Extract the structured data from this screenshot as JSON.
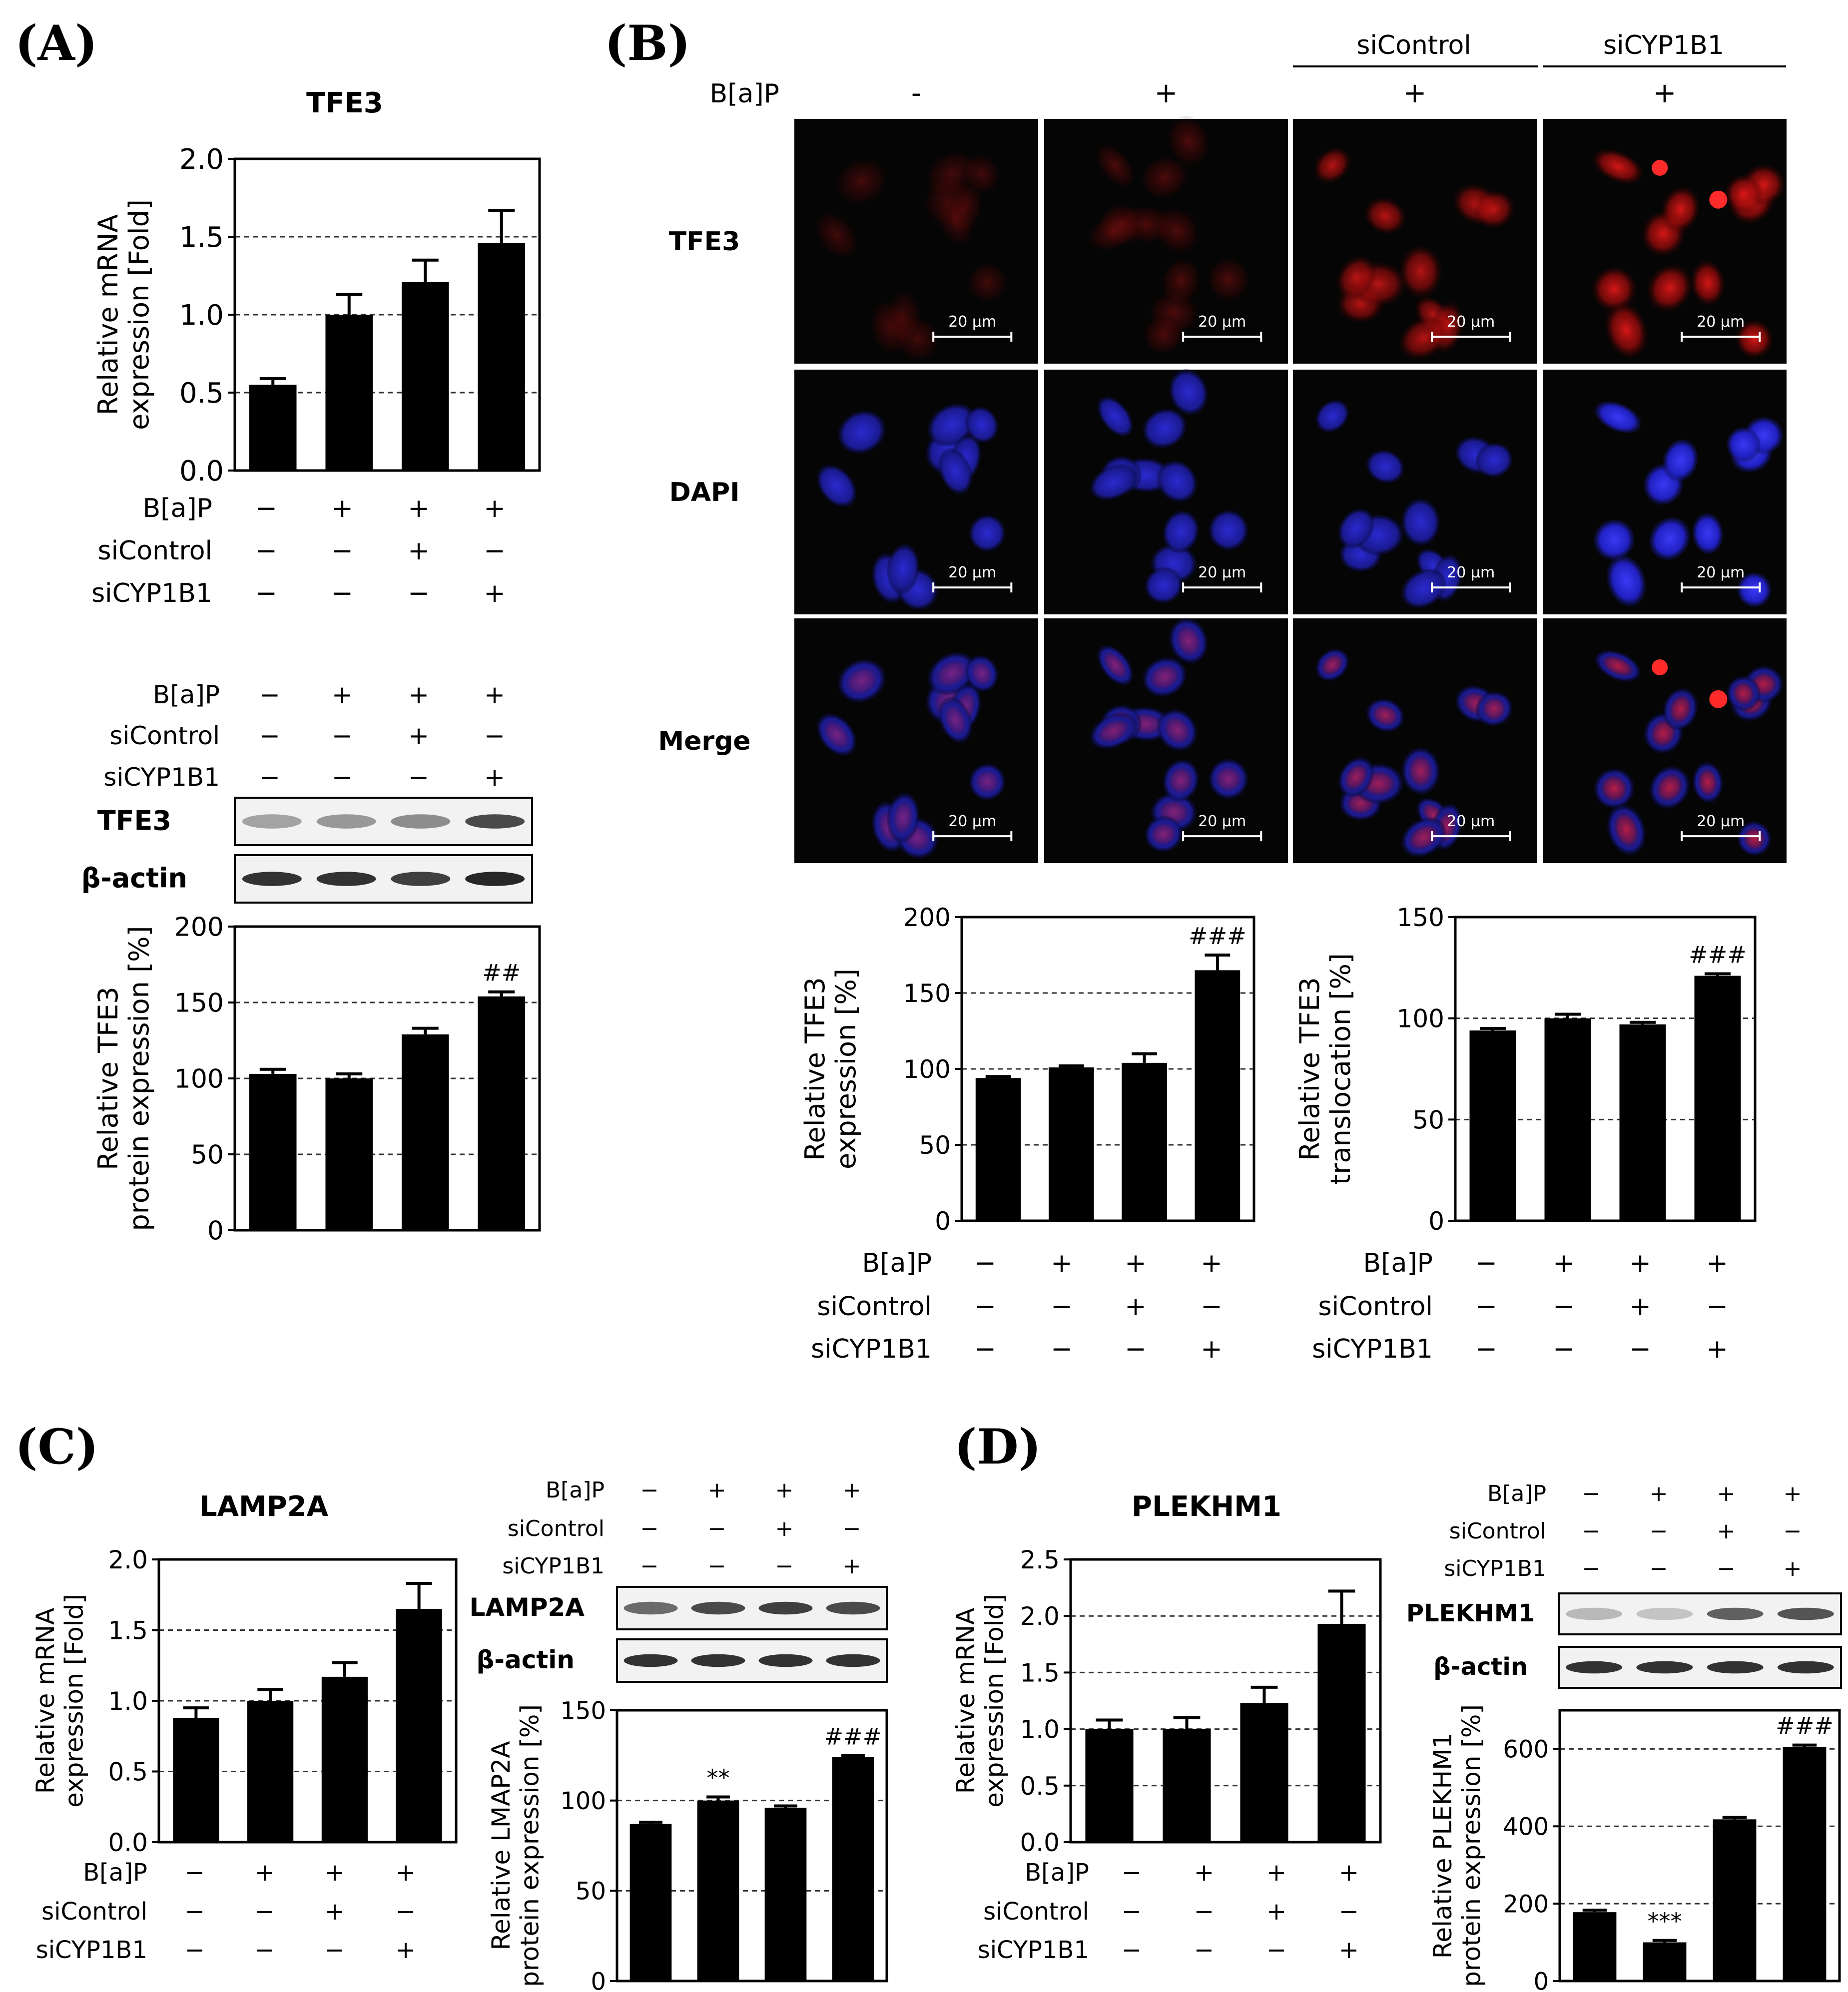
{
  "panels": {
    "A": {
      "label": "(A)"
    },
    "B": {
      "label": "(B)"
    },
    "C": {
      "label": "(C)"
    },
    "D": {
      "label": "(D)"
    }
  },
  "treatment_labels": {
    "bap": "B[a]P",
    "sicontrol": "siControl",
    "sicyp": "siCYP1B1"
  },
  "conditions": {
    "bap": [
      "−",
      "+",
      "+",
      "+"
    ],
    "sicontrol": [
      "−",
      "−",
      "+",
      "−"
    ],
    "sicyp": [
      "−",
      "−",
      "−",
      "+"
    ]
  },
  "blot_labels": {
    "A_target": "TFE3",
    "A_loading": "β-actin",
    "C_target": "LAMP2A",
    "C_loading": "β-actin",
    "D_target": "PLEKHM1",
    "D_loading": "β-actin"
  },
  "microscopy": {
    "header_bap": "B[a]P",
    "column_signs": [
      "-",
      "+",
      "+",
      "+"
    ],
    "group_sicontrol": "siControl",
    "group_sicyp": "siCYP1B1",
    "rows": [
      "TFE3",
      "DAPI",
      "Merge"
    ],
    "scale_bar": "20 μm",
    "colors": {
      "tfe3": "#d81414",
      "dapi": "#2a2ae0",
      "background": "#050505"
    }
  },
  "chart_data": [
    {
      "id": "A_mrna",
      "type": "bar",
      "title": "TFE3",
      "ylabel": "Relative mRNA\nexpression [Fold]",
      "categories": [
        "1",
        "2",
        "3",
        "4"
      ],
      "values": [
        0.55,
        1.0,
        1.21,
        1.46
      ],
      "errors": [
        0.04,
        0.13,
        0.14,
        0.21
      ],
      "ylim": [
        0,
        2.0
      ],
      "yticks": [
        "0.0",
        "0.5",
        "1.0",
        "1.5",
        "2.0"
      ],
      "ytick_values": [
        0,
        0.5,
        1.0,
        1.5,
        2.0
      ],
      "grid": [
        0.5,
        1.0,
        1.5
      ],
      "annotations": [
        "",
        "",
        "",
        ""
      ]
    },
    {
      "id": "A_protein",
      "type": "bar",
      "title": "",
      "ylabel": "Relative TFE3\nprotein expression [%]",
      "categories": [
        "1",
        "2",
        "3",
        "4"
      ],
      "values": [
        103,
        100,
        129,
        154
      ],
      "errors": [
        3,
        3,
        4,
        3
      ],
      "ylim": [
        0,
        200
      ],
      "yticks": [
        "0",
        "50",
        "100",
        "150",
        "200"
      ],
      "ytick_values": [
        0,
        50,
        100,
        150,
        200
      ],
      "grid": [
        50,
        100,
        150
      ],
      "annotations": [
        "",
        "",
        "",
        "##"
      ]
    },
    {
      "id": "B_expr",
      "type": "bar",
      "title": "",
      "ylabel": "Relative TFE3\nexpression [%]",
      "categories": [
        "1",
        "2",
        "3",
        "4"
      ],
      "values": [
        94,
        101,
        104,
        165
      ],
      "errors": [
        1,
        1,
        6,
        10
      ],
      "ylim": [
        0,
        200
      ],
      "yticks": [
        "0",
        "50",
        "100",
        "150",
        "200"
      ],
      "ytick_values": [
        0,
        50,
        100,
        150,
        200
      ],
      "grid": [
        50,
        100,
        150
      ],
      "annotations": [
        "",
        "",
        "",
        "###"
      ]
    },
    {
      "id": "B_transloc",
      "type": "bar",
      "title": "",
      "ylabel": "Relative TFE3\ntranslocation [%]",
      "categories": [
        "1",
        "2",
        "3",
        "4"
      ],
      "values": [
        94,
        100,
        97,
        121
      ],
      "errors": [
        1,
        2,
        1,
        1
      ],
      "ylim": [
        0,
        150
      ],
      "yticks": [
        "0",
        "50",
        "100",
        "150"
      ],
      "ytick_values": [
        0,
        50,
        100,
        150
      ],
      "grid": [
        50,
        100
      ],
      "annotations": [
        "",
        "",
        "",
        "###"
      ]
    },
    {
      "id": "C_mrna",
      "type": "bar",
      "title": "LAMP2A",
      "ylabel": "Relative mRNA\nexpression [Fold]",
      "categories": [
        "1",
        "2",
        "3",
        "4"
      ],
      "values": [
        0.88,
        1.0,
        1.17,
        1.65
      ],
      "errors": [
        0.07,
        0.08,
        0.1,
        0.18
      ],
      "ylim": [
        0,
        2.0
      ],
      "yticks": [
        "0.0",
        "0.5",
        "1.0",
        "1.5",
        "2.0"
      ],
      "ytick_values": [
        0,
        0.5,
        1.0,
        1.5,
        2.0
      ],
      "grid": [
        0.5,
        1.0,
        1.5
      ],
      "annotations": [
        "",
        "",
        "",
        ""
      ]
    },
    {
      "id": "C_protein",
      "type": "bar",
      "title": "",
      "ylabel": "Relative LMAP2A\nprotein expression [%]",
      "categories": [
        "1",
        "2",
        "3",
        "4"
      ],
      "values": [
        87,
        100,
        96,
        124
      ],
      "errors": [
        1,
        2,
        1,
        1
      ],
      "ylim": [
        0,
        150
      ],
      "yticks": [
        "0",
        "50",
        "100",
        "150"
      ],
      "ytick_values": [
        0,
        50,
        100,
        150
      ],
      "grid": [
        50,
        100
      ],
      "annotations": [
        "",
        "**",
        "",
        "###"
      ]
    },
    {
      "id": "D_mrna",
      "type": "bar",
      "title": "PLEKHM1",
      "ylabel": "Relative mRNA\nexpression [Fold]",
      "categories": [
        "1",
        "2",
        "3",
        "4"
      ],
      "values": [
        1.0,
        1.0,
        1.23,
        1.93
      ],
      "errors": [
        0.08,
        0.1,
        0.14,
        0.29
      ],
      "ylim": [
        0,
        2.5
      ],
      "yticks": [
        "0.0",
        "0.5",
        "1.0",
        "1.5",
        "2.0",
        "2.5"
      ],
      "ytick_values": [
        0,
        0.5,
        1.0,
        1.5,
        2.0,
        2.5
      ],
      "grid": [
        0.5,
        1.0,
        1.5,
        2.0
      ],
      "annotations": [
        "",
        "",
        "",
        ""
      ]
    },
    {
      "id": "D_protein",
      "type": "bar",
      "title": "",
      "ylabel": "Relative PLEKHM1\nprotein expression [%]",
      "categories": [
        "1",
        "2",
        "3",
        "4"
      ],
      "values": [
        178,
        100,
        418,
        605
      ],
      "errors": [
        5,
        5,
        5,
        5
      ],
      "ylim": [
        0,
        700
      ],
      "yticks": [
        "0",
        "200",
        "400",
        "600"
      ],
      "ytick_values": [
        0,
        200,
        400,
        600
      ],
      "grid": [
        200,
        400,
        600
      ],
      "annotations": [
        "",
        "***",
        "",
        "###"
      ]
    }
  ]
}
